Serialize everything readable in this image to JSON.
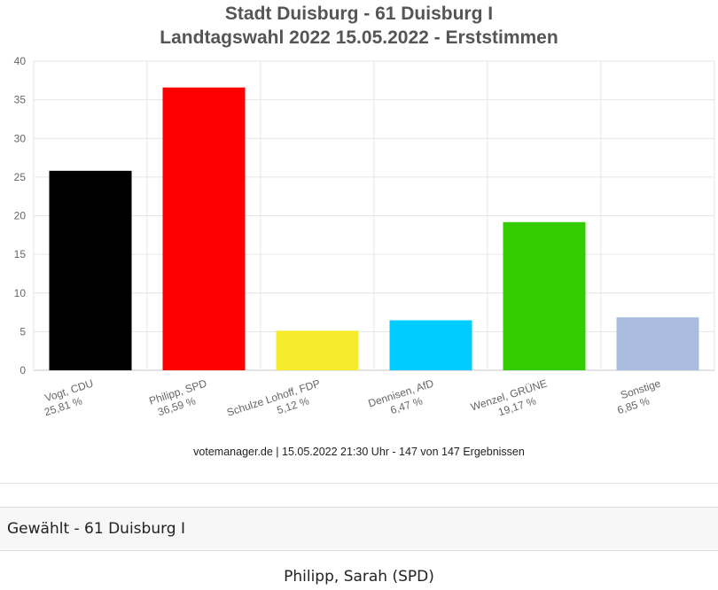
{
  "chart_data": {
    "type": "bar",
    "title": "Stadt Duisburg - 61 Duisburg I",
    "subtitle": "Landtagswahl 2022 15.05.2022  - Erststimmen",
    "categories": [
      {
        "name": "Vogt, CDU",
        "pct": "25,81 %"
      },
      {
        "name": "Philipp, SPD",
        "pct": "36,59 %"
      },
      {
        "name": "Schulze Lohoff, FDP",
        "pct": "5,12 %"
      },
      {
        "name": "Dennisen, AfD",
        "pct": "6,47 %"
      },
      {
        "name": "Wenzel, GRÜNE",
        "pct": "19,17 %"
      },
      {
        "name": "Sonstige",
        "pct": "6,85 %"
      }
    ],
    "values": [
      25.81,
      36.59,
      5.12,
      6.47,
      19.17,
      6.85
    ],
    "colors": [
      "#000000",
      "#ff0000",
      "#f7ec2c",
      "#00ccff",
      "#33cc00",
      "#aabbe0"
    ],
    "ylim": [
      0,
      40
    ],
    "yticks": [
      0,
      5,
      10,
      15,
      20,
      25,
      30,
      35,
      40
    ],
    "grid": true,
    "xlabel": "",
    "ylabel": "",
    "credits": "votemanager.de | 15.05.2022 21:30 Uhr - 147 von 147 Ergebnissen"
  },
  "section": {
    "label": "Gewählt - 61 Duisburg I",
    "winner": "Philipp, Sarah (SPD)"
  }
}
